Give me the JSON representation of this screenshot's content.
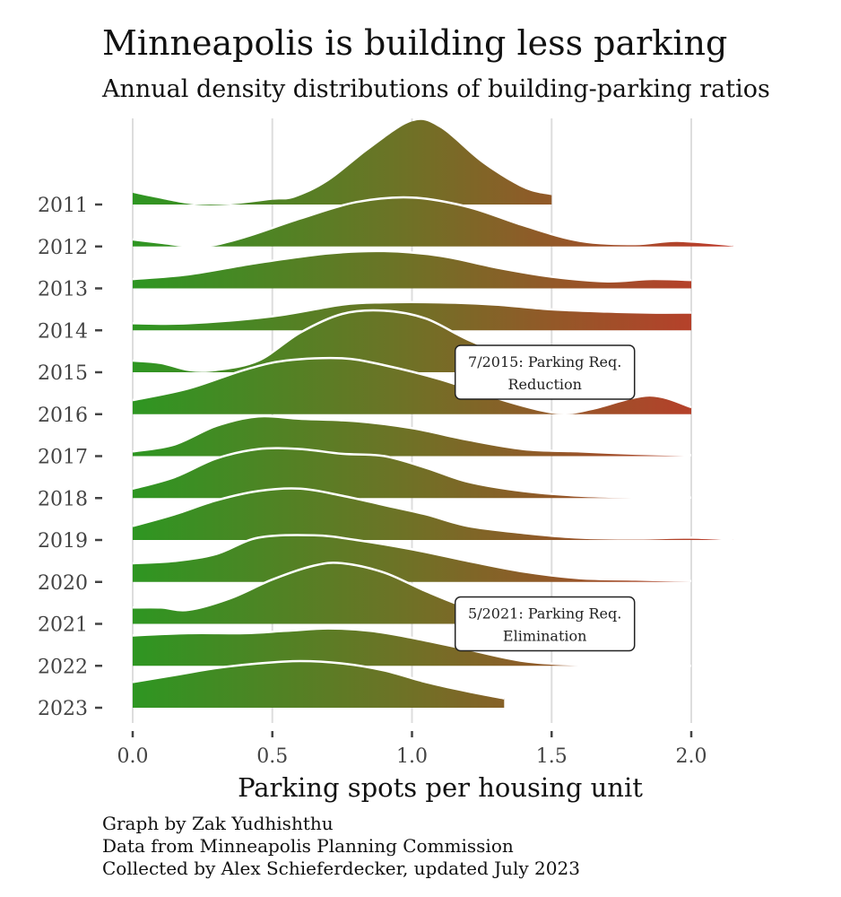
{
  "title": "Minneapolis is building less parking",
  "subtitle": "Annual density distributions of building-parking ratios",
  "caption": [
    "Graph by Zak Yudhishthu",
    "Data from Minneapolis Planning Commission",
    "Collected by Alex Schieferdecker, updated July 2023"
  ],
  "colors": {
    "low": "#2e9622",
    "mid": "#6e7226",
    "high": "#c0392b",
    "grid": "#dddddd",
    "ridge_outline": "#ffffff",
    "text": "#444444"
  },
  "chart_data": {
    "type": "ridgeline",
    "xlabel": "Parking spots per housing unit",
    "ylabel": "",
    "xlim": [
      0,
      2.15
    ],
    "x_ticks": [
      0,
      0.5,
      1,
      1.5,
      2
    ],
    "x_tick_labels": [
      "0.0",
      "0.5",
      "1.0",
      "1.5",
      "2.0"
    ],
    "grid": "vertical",
    "fill": "horizontal gradient green to red by x",
    "series": [
      {
        "name": "2011",
        "xmax": 1.5,
        "density": [
          [
            0,
            0.25
          ],
          [
            0.08,
            0.15
          ],
          [
            0.22,
            0
          ],
          [
            0.35,
            0
          ],
          [
            0.5,
            0.1
          ],
          [
            0.58,
            0.15
          ],
          [
            0.7,
            0.5
          ],
          [
            0.85,
            1.2
          ],
          [
            1.0,
            1.78
          ],
          [
            1.1,
            1.65
          ],
          [
            1.25,
            0.9
          ],
          [
            1.4,
            0.35
          ],
          [
            1.5,
            0.2
          ]
        ]
      },
      {
        "name": "2012",
        "xmax": 2.15,
        "density": [
          [
            0,
            0.15
          ],
          [
            0.1,
            0.08
          ],
          [
            0.25,
            0.0
          ],
          [
            0.4,
            0.2
          ],
          [
            0.6,
            0.6
          ],
          [
            0.8,
            0.95
          ],
          [
            1.0,
            1.05
          ],
          [
            1.2,
            0.85
          ],
          [
            1.4,
            0.45
          ],
          [
            1.6,
            0.12
          ],
          [
            1.8,
            0.05
          ],
          [
            1.95,
            0.12
          ],
          [
            2.15,
            0.03
          ]
        ]
      },
      {
        "name": "2013",
        "xmax": 2.0,
        "density": [
          [
            0,
            0.2
          ],
          [
            0.2,
            0.3
          ],
          [
            0.45,
            0.55
          ],
          [
            0.7,
            0.75
          ],
          [
            0.9,
            0.8
          ],
          [
            1.1,
            0.7
          ],
          [
            1.3,
            0.45
          ],
          [
            1.5,
            0.25
          ],
          [
            1.7,
            0.15
          ],
          [
            1.85,
            0.2
          ],
          [
            2.0,
            0.18
          ]
        ]
      },
      {
        "name": "2014",
        "xmax": 2.0,
        "density": [
          [
            0,
            0.15
          ],
          [
            0.2,
            0.15
          ],
          [
            0.5,
            0.3
          ],
          [
            0.75,
            0.55
          ],
          [
            0.9,
            0.6
          ],
          [
            1.1,
            0.6
          ],
          [
            1.3,
            0.55
          ],
          [
            1.5,
            0.45
          ],
          [
            1.7,
            0.4
          ],
          [
            1.85,
            0.38
          ],
          [
            2.0,
            0.38
          ]
        ]
      },
      {
        "name": "2015",
        "xmax": 1.5,
        "density": [
          [
            0,
            0.25
          ],
          [
            0.1,
            0.2
          ],
          [
            0.2,
            0.05
          ],
          [
            0.3,
            0.05
          ],
          [
            0.45,
            0.25
          ],
          [
            0.6,
            0.85
          ],
          [
            0.75,
            1.25
          ],
          [
            0.9,
            1.32
          ],
          [
            1.05,
            1.15
          ],
          [
            1.2,
            0.7
          ],
          [
            1.35,
            0.35
          ],
          [
            1.5,
            0.15
          ]
        ]
      },
      {
        "name": "2016",
        "xmax": 2.0,
        "density": [
          [
            0,
            0.3
          ],
          [
            0.2,
            0.55
          ],
          [
            0.4,
            0.95
          ],
          [
            0.55,
            1.15
          ],
          [
            0.75,
            1.2
          ],
          [
            0.9,
            1.05
          ],
          [
            1.1,
            0.75
          ],
          [
            1.3,
            0.35
          ],
          [
            1.45,
            0.1
          ],
          [
            1.55,
            0.02
          ],
          [
            1.65,
            0.12
          ],
          [
            1.85,
            0.4
          ],
          [
            2.0,
            0.15
          ]
        ]
      },
      {
        "name": "2017",
        "xmax": 2.0,
        "density": [
          [
            0,
            0.1
          ],
          [
            0.15,
            0.25
          ],
          [
            0.3,
            0.65
          ],
          [
            0.45,
            0.85
          ],
          [
            0.6,
            0.8
          ],
          [
            0.8,
            0.75
          ],
          [
            1.0,
            0.6
          ],
          [
            1.2,
            0.35
          ],
          [
            1.4,
            0.15
          ],
          [
            1.6,
            0.1
          ],
          [
            1.8,
            0.05
          ],
          [
            2.0,
            0.02
          ]
        ]
      },
      {
        "name": "2018",
        "xmax": 2.0,
        "density": [
          [
            0,
            0.2
          ],
          [
            0.15,
            0.45
          ],
          [
            0.3,
            0.85
          ],
          [
            0.45,
            1.05
          ],
          [
            0.6,
            1.05
          ],
          [
            0.75,
            0.95
          ],
          [
            0.9,
            0.9
          ],
          [
            1.05,
            0.65
          ],
          [
            1.2,
            0.35
          ],
          [
            1.4,
            0.15
          ],
          [
            1.6,
            0.05
          ],
          [
            1.8,
            0.02
          ],
          [
            2.0,
            0.01
          ]
        ]
      },
      {
        "name": "2019",
        "xmax": 2.15,
        "density": [
          [
            0,
            0.3
          ],
          [
            0.15,
            0.55
          ],
          [
            0.3,
            0.85
          ],
          [
            0.45,
            1.05
          ],
          [
            0.6,
            1.1
          ],
          [
            0.75,
            0.95
          ],
          [
            0.9,
            0.75
          ],
          [
            1.05,
            0.55
          ],
          [
            1.2,
            0.3
          ],
          [
            1.4,
            0.15
          ],
          [
            1.6,
            0.05
          ],
          [
            1.8,
            0.03
          ],
          [
            2.0,
            0.05
          ],
          [
            2.15,
            0.01
          ]
        ]
      },
      {
        "name": "2020",
        "xmax": 2.0,
        "density": [
          [
            0,
            0.4
          ],
          [
            0.15,
            0.45
          ],
          [
            0.3,
            0.6
          ],
          [
            0.45,
            0.95
          ],
          [
            0.65,
            1.0
          ],
          [
            0.8,
            0.9
          ],
          [
            1.0,
            0.7
          ],
          [
            1.2,
            0.45
          ],
          [
            1.4,
            0.22
          ],
          [
            1.6,
            0.08
          ],
          [
            1.8,
            0.05
          ],
          [
            2.0,
            0.02
          ]
        ]
      },
      {
        "name": "2021",
        "xmax": 1.5,
        "density": [
          [
            0,
            0.35
          ],
          [
            0.1,
            0.35
          ],
          [
            0.2,
            0.3
          ],
          [
            0.35,
            0.55
          ],
          [
            0.5,
            0.95
          ],
          [
            0.65,
            1.25
          ],
          [
            0.75,
            1.3
          ],
          [
            0.9,
            1.1
          ],
          [
            1.05,
            0.7
          ],
          [
            1.2,
            0.35
          ],
          [
            1.35,
            0.15
          ],
          [
            1.45,
            0.08
          ],
          [
            1.5,
            0.05
          ]
        ]
      },
      {
        "name": "2022",
        "xmax": 2.0,
        "density": [
          [
            0,
            0.65
          ],
          [
            0.2,
            0.7
          ],
          [
            0.4,
            0.7
          ],
          [
            0.55,
            0.75
          ],
          [
            0.7,
            0.8
          ],
          [
            0.85,
            0.75
          ],
          [
            1.0,
            0.6
          ],
          [
            1.2,
            0.35
          ],
          [
            1.4,
            0.1
          ],
          [
            1.6,
            0.02
          ],
          [
            1.8,
            0.01
          ],
          [
            2.0,
            0.0
          ]
        ]
      },
      {
        "name": "2023",
        "xmax": 1.33,
        "density": [
          [
            0,
            0.55
          ],
          [
            0.15,
            0.7
          ],
          [
            0.3,
            0.85
          ],
          [
            0.45,
            0.95
          ],
          [
            0.6,
            1.0
          ],
          [
            0.75,
            0.95
          ],
          [
            0.9,
            0.8
          ],
          [
            1.05,
            0.55
          ],
          [
            1.2,
            0.35
          ],
          [
            1.33,
            0.2
          ]
        ]
      }
    ],
    "annotations": [
      {
        "x": 1.8,
        "row": "2015",
        "lines": [
          "7/2015: Parking Req.",
          "Reduction"
        ]
      },
      {
        "x": 1.8,
        "row": "2021",
        "lines": [
          "5/2021: Parking Req.",
          "Elimination"
        ]
      }
    ]
  }
}
